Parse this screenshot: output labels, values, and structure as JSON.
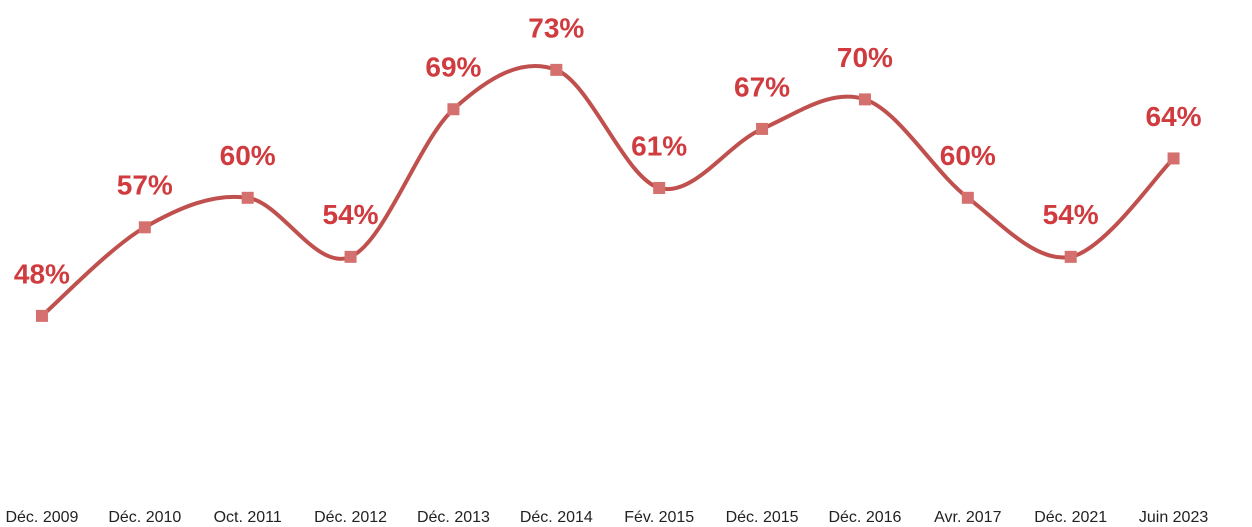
{
  "chart_data": {
    "type": "line",
    "categories": [
      "Déc. 2009",
      "Déc. 2010",
      "Oct. 2011",
      "Déc. 2012",
      "Déc. 2013",
      "Déc. 2014",
      "Fév. 2015",
      "Déc. 2015",
      "Déc. 2016",
      "Avr. 2017",
      "Déc. 2021",
      "Juin 2023"
    ],
    "values": [
      48,
      57,
      60,
      54,
      69,
      73,
      61,
      67,
      70,
      60,
      54,
      64
    ],
    "value_labels": [
      "48%",
      "57%",
      "60%",
      "54%",
      "69%",
      "73%",
      "61%",
      "67%",
      "70%",
      "60%",
      "54%",
      "64%"
    ],
    "color": "#c0504d",
    "ylim": [
      30,
      80
    ]
  }
}
